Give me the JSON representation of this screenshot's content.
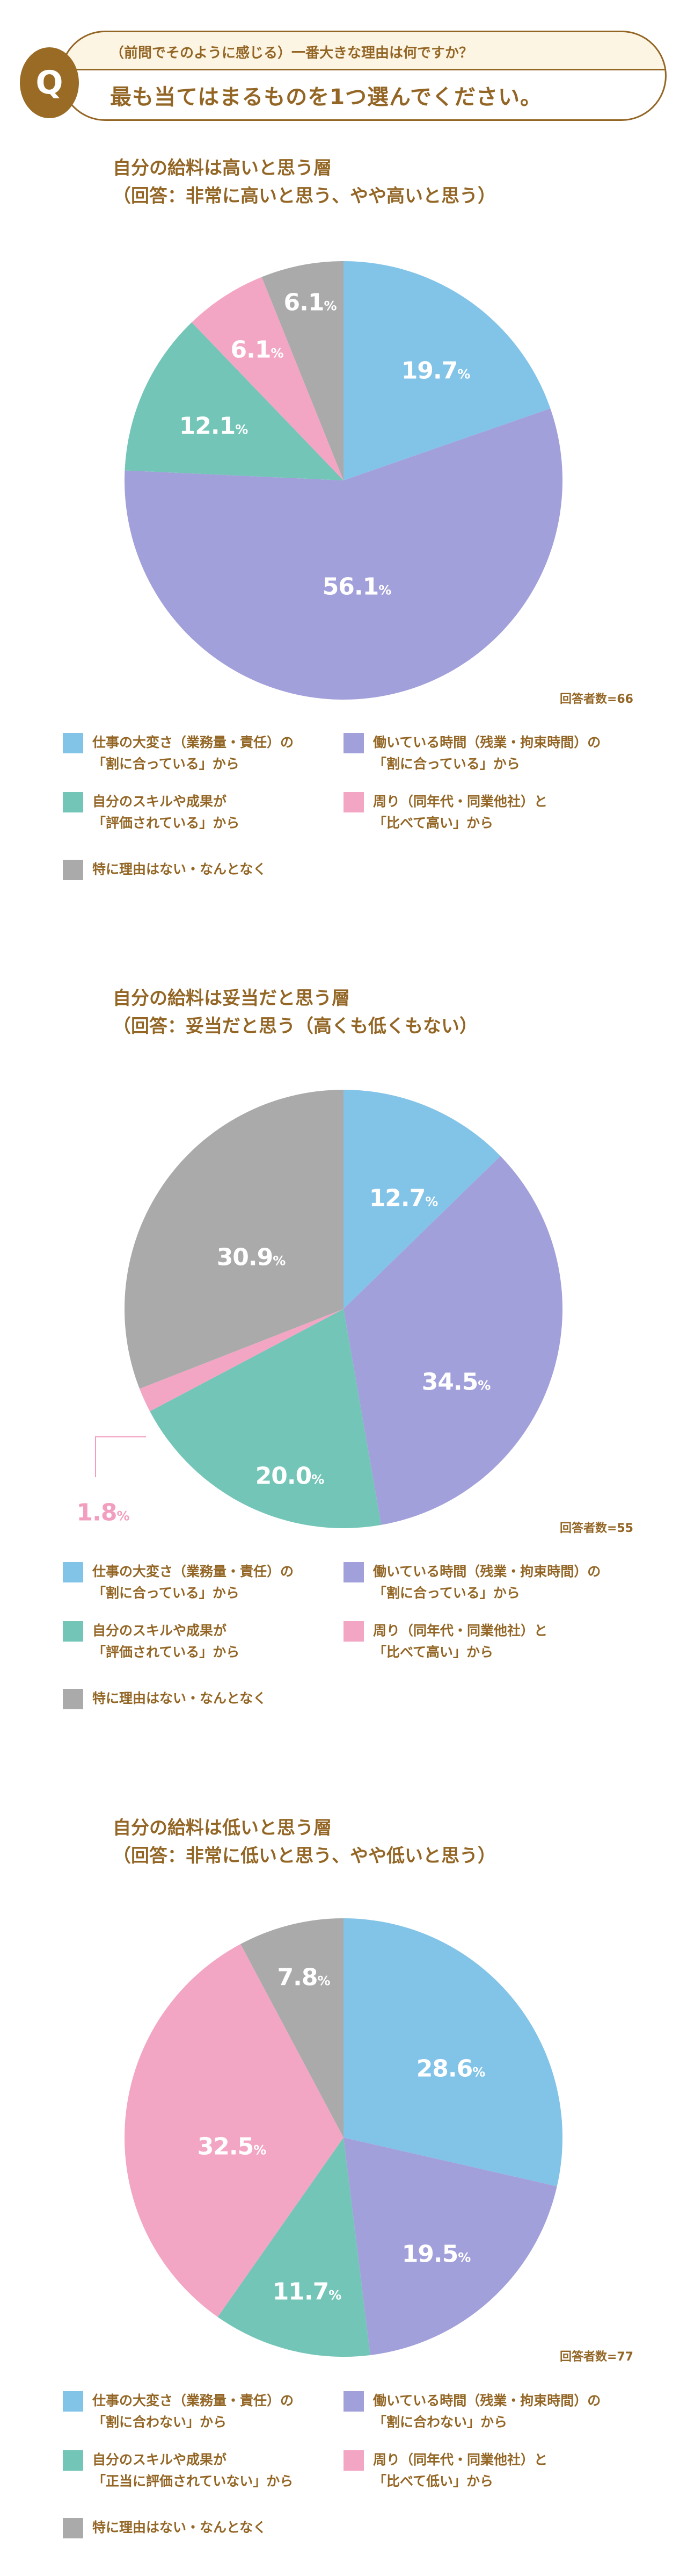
{
  "question": {
    "badge": "Q",
    "subtitle": "（前問でそのように感じる）一番大きな理由は何ですか？",
    "title": "最も当てはまるものを1つ選んでください。"
  },
  "colors": {
    "brand_brown": "#936625",
    "badge_brown": "#9a6b25",
    "header_cream": "#fdf5e4",
    "blue": "#82c3e8",
    "purple": "#a2a0da",
    "teal": "#72c5b7",
    "pink": "#f3a6c3",
    "gray": "#aaaaaa"
  },
  "sections": [
    {
      "title_line1": "自分の給料は高いと思う層",
      "title_line2": "（回答：非常に高いと思う、やや高いと思う）",
      "respondents": "回答者数=66",
      "slices": [
        {
          "label": "19.7",
          "unit": "%"
        },
        {
          "label": "56.1",
          "unit": "%"
        },
        {
          "label": "12.1",
          "unit": "%"
        },
        {
          "label": "6.1",
          "unit": "%"
        },
        {
          "label": "6.1",
          "unit": "%"
        }
      ],
      "legend": [
        {
          "line1": "仕事の大変さ（業務量・責任）の",
          "line2": "「割に合っている」から"
        },
        {
          "line1": "働いている時間（残業・拘束時間）の",
          "line2": "「割に合っている」から"
        },
        {
          "line1": "自分のスキルや成果が",
          "line2": "「評価されている」から"
        },
        {
          "line1": "周り（同年代・同業他社）と",
          "line2": "「比べて高い」から"
        },
        {
          "line1": "特に理由はない・なんとなく",
          "line2": ""
        }
      ]
    },
    {
      "title_line1": "自分の給料は妥当だと思う層",
      "title_line2": "（回答：妥当だと思う（高くも低くもない）",
      "respondents": "回答者数=55",
      "slices": [
        {
          "label": "12.7",
          "unit": "%"
        },
        {
          "label": "34.5",
          "unit": "%"
        },
        {
          "label": "20.0",
          "unit": "%"
        },
        {
          "label": "1.8",
          "unit": "%"
        },
        {
          "label": "30.9",
          "unit": "%"
        }
      ],
      "legend": [
        {
          "line1": "仕事の大変さ（業務量・責任）の",
          "line2": "「割に合っている」から"
        },
        {
          "line1": "働いている時間（残業・拘束時間）の",
          "line2": "「割に合っている」から"
        },
        {
          "line1": "自分のスキルや成果が",
          "line2": "「評価されている」から"
        },
        {
          "line1": "周り（同年代・同業他社）と",
          "line2": "「比べて高い」から"
        },
        {
          "line1": "特に理由はない・なんとなく",
          "line2": ""
        }
      ]
    },
    {
      "title_line1": "自分の給料は低いと思う層",
      "title_line2": "（回答：非常に低いと思う、やや低いと思う）",
      "respondents": "回答者数=77",
      "slices": [
        {
          "label": "28.6",
          "unit": "%"
        },
        {
          "label": "19.5",
          "unit": "%"
        },
        {
          "label": "11.7",
          "unit": "%"
        },
        {
          "label": "32.5",
          "unit": "%"
        },
        {
          "label": "7.8",
          "unit": "%"
        }
      ],
      "legend": [
        {
          "line1": "仕事の大変さ（業務量・責任）の",
          "line2": "「割に合わない」から"
        },
        {
          "line1": "働いている時間（残業・拘束時間）の",
          "line2": "「割に合わない」から"
        },
        {
          "line1": "自分のスキルや成果が",
          "line2": "「正当に評価されていない」から"
        },
        {
          "line1": "周り（同年代・同業他社）と",
          "line2": "「比べて低い」から"
        },
        {
          "line1": "特に理由はない・なんとなく",
          "line2": ""
        }
      ]
    }
  ],
  "chart_data": [
    {
      "type": "pie",
      "title": "自分の給料は高いと思う層（回答：非常に高いと思う、やや高いと思う）",
      "categories": [
        "仕事の大変さ（業務量・責任）の「割に合っている」から",
        "働いている時間（残業・拘束時間）の「割に合っている」から",
        "自分のスキルや成果が「評価されている」から",
        "周り（同年代・同業他社）と「比べて高い」から",
        "特に理由はない・なんとなく"
      ],
      "values": [
        19.7,
        56.1,
        12.1,
        6.1,
        6.1
      ],
      "colors": [
        "#82c3e8",
        "#a2a0da",
        "#72c5b7",
        "#f3a6c3",
        "#aaaaaa"
      ],
      "n": 66,
      "legend_position": "bottom"
    },
    {
      "type": "pie",
      "title": "自分の給料は妥当だと思う層（回答：妥当だと思う（高くも低くもない）",
      "categories": [
        "仕事の大変さ（業務量・責任）の「割に合っている」から",
        "働いている時間（残業・拘束時間）の「割に合っている」から",
        "自分のスキルや成果が「評価されている」から",
        "周り（同年代・同業他社）と「比べて高い」から",
        "特に理由はない・なんとなく"
      ],
      "values": [
        12.7,
        34.5,
        20.0,
        1.8,
        30.9
      ],
      "colors": [
        "#82c3e8",
        "#a2a0da",
        "#72c5b7",
        "#f3a6c3",
        "#aaaaaa"
      ],
      "n": 55,
      "legend_position": "bottom"
    },
    {
      "type": "pie",
      "title": "自分の給料は低いと思う層（回答：非常に低いと思う、やや低いと思う）",
      "categories": [
        "仕事の大変さ（業務量・責任）の「割に合わない」から",
        "働いている時間（残業・拘束時間）の「割に合わない」から",
        "自分のスキルや成果が「正当に評価されていない」から",
        "周り（同年代・同業他社）と「比べて低い」から",
        "特に理由はない・なんとなく"
      ],
      "values": [
        28.6,
        19.5,
        11.7,
        32.5,
        7.8
      ],
      "colors": [
        "#82c3e8",
        "#a2a0da",
        "#72c5b7",
        "#f3a6c3",
        "#aaaaaa"
      ],
      "n": 77,
      "legend_position": "bottom"
    }
  ]
}
